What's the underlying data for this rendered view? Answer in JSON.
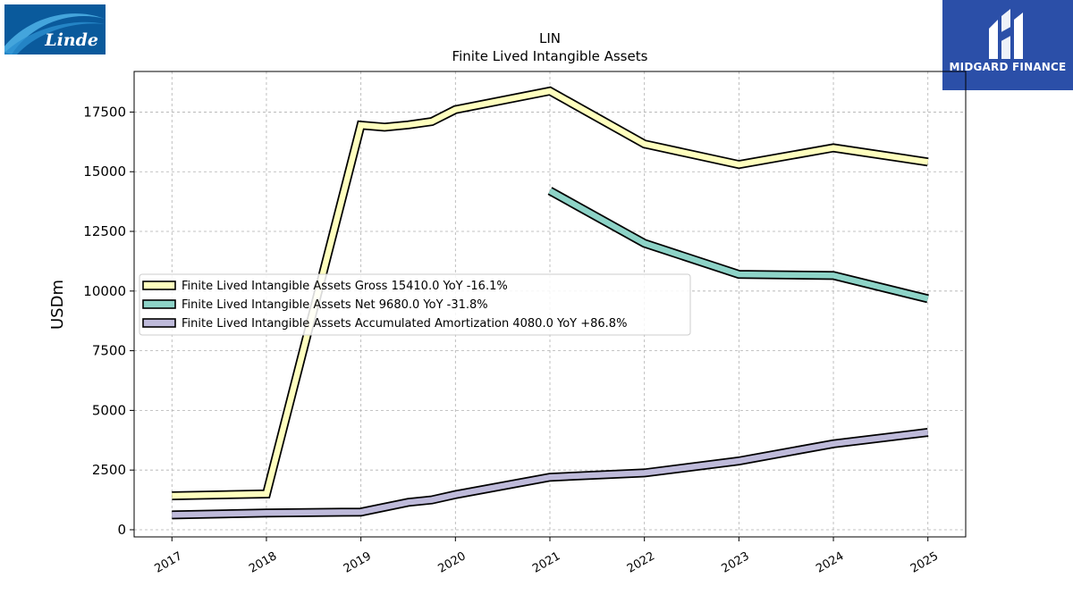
{
  "logos": {
    "left": {
      "text": "Linde",
      "icon": "linde-swoosh-logo",
      "color": "#0a5a9c"
    },
    "right": {
      "text": "MIDGARD FINANCE",
      "icon": "midgard-m-logo",
      "color": "#2b4fa8"
    }
  },
  "chart_data": {
    "type": "line",
    "title": "LIN",
    "subtitle": "Finite Lived Intangible Assets",
    "ylabel": "USDm",
    "xlabel": "",
    "ylim": [
      -300,
      19200
    ],
    "xlim": [
      2016.6,
      2025.4
    ],
    "yticks": [
      0,
      2500,
      5000,
      7500,
      10000,
      12500,
      15000,
      17500
    ],
    "ytick_labels": [
      "0",
      "2500",
      "5000",
      "7500",
      "10000",
      "12500",
      "15000",
      "17500"
    ],
    "xticks": [
      2017,
      2018,
      2019,
      2020,
      2021,
      2022,
      2023,
      2024,
      2025
    ],
    "xtick_labels": [
      "2017",
      "2018",
      "2019",
      "2020",
      "2021",
      "2022",
      "2023",
      "2024",
      "2025"
    ],
    "grid": true,
    "legend_position": "center-left",
    "series": [
      {
        "name": "Finite Lived Intangible Assets Gross",
        "legend_label": "Finite Lived Intangible Assets Gross  15410.0 YoY -16.1%",
        "color": "#ffffbe",
        "x": [
          2017,
          2018,
          2019,
          2019.25,
          2019.5,
          2019.75,
          2020,
          2021,
          2022,
          2023,
          2024,
          2025
        ],
        "y": [
          1420,
          1500,
          16950,
          16870,
          16960,
          17100,
          17600,
          18380,
          16160,
          15300,
          16000,
          15410
        ]
      },
      {
        "name": "Finite Lived Intangible Assets Net",
        "legend_label": "Finite Lived Intangible Assets Net  9680.0 YoY -31.8%",
        "color": "#8dd3c7",
        "x": [
          2021,
          2022,
          2023,
          2024,
          2025
        ],
        "y": [
          14200,
          12000,
          10700,
          10650,
          9680
        ]
      },
      {
        "name": "Finite Lived Intangible Assets Accumulated Amortization",
        "legend_label": "Finite Lived Intangible Assets Accumulated Amortization  4080.0 YoY +86.8%",
        "color": "#bebada",
        "x": [
          2017,
          2018,
          2019,
          2019.5,
          2019.75,
          2020,
          2021,
          2022,
          2023,
          2024,
          2025
        ],
        "y": [
          620,
          700,
          740,
          1150,
          1250,
          1470,
          2200,
          2380,
          2880,
          3600,
          4080
        ]
      }
    ]
  }
}
